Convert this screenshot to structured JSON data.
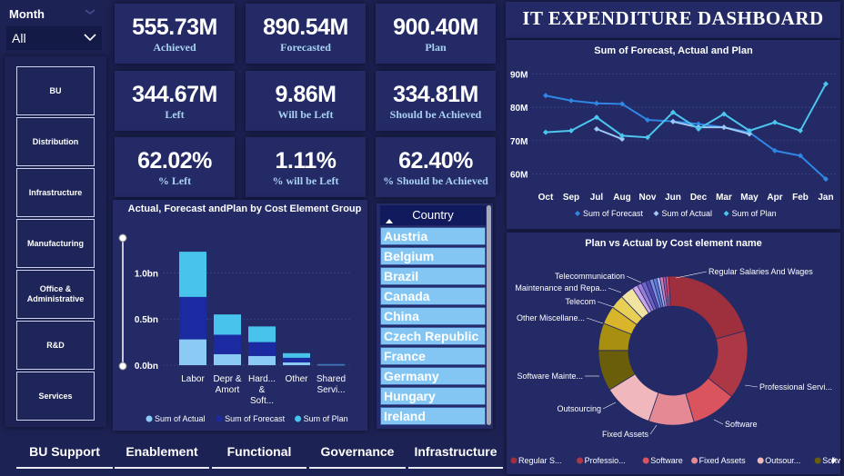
{
  "month_slicer": {
    "title": "Month",
    "selected": "All"
  },
  "bu_slicer": {
    "items": [
      "BU",
      "Distribution",
      "Infrastructure",
      "Manufacturing",
      "Office & Administrative",
      "R&D",
      "Services"
    ]
  },
  "kpis": [
    {
      "value": "555.73M",
      "label": "Achieved"
    },
    {
      "value": "890.54M",
      "label": "Forecasted"
    },
    {
      "value": "900.40M",
      "label": "Plan"
    },
    {
      "value": "344.67M",
      "label": "Left"
    },
    {
      "value": "9.86M",
      "label": "Will be Left"
    },
    {
      "value": "334.81M",
      "label": "Should be Achieved"
    },
    {
      "value": "62.02%",
      "label": "% Left"
    },
    {
      "value": "1.11%",
      "label": "% will be Left"
    },
    {
      "value": "62.40%",
      "label": "% Should be Achieved"
    }
  ],
  "dashboard_title": "IT EXPENDITURE DASHBOARD",
  "country_slicer": {
    "header": "Country",
    "items": [
      "Austria",
      "Belgium",
      "Brazil",
      "Canada",
      "China",
      "Czech Republic",
      "France",
      "Germany",
      "Hungary",
      "Ireland"
    ]
  },
  "tabs": [
    "BU Support",
    "Enablement",
    "Functional",
    "Governance",
    "Infrastructure"
  ],
  "colors": {
    "background": "#1c2253",
    "panel": "#232a66",
    "forecast": "#2f87e6",
    "actual": "#9ec9f5",
    "plan": "#4cc6ee",
    "bar_actual": "#8ccaf6",
    "bar_forecast": "#1b2aa0",
    "bar_plan": "#47c3ec"
  },
  "chart_data": [
    {
      "type": "line",
      "title": "Sum of Forecast, Actual and Plan",
      "x": [
        "Oct",
        "Sep",
        "Jul",
        "Aug",
        "Nov",
        "Jun",
        "Dec",
        "Mar",
        "May",
        "Apr",
        "Feb",
        "Jan"
      ],
      "yticks": [
        "90M",
        "80M",
        "70M",
        "60M"
      ],
      "ylim": [
        55,
        92
      ],
      "series": [
        {
          "name": "Sum of Forecast",
          "values": [
            83.5,
            82,
            81.2,
            81,
            76.2,
            75.8,
            75,
            74,
            72.5,
            67,
            65.5,
            58.5
          ]
        },
        {
          "name": "Sum of Actual",
          "values": [
            null,
            null,
            73.5,
            70.5,
            null,
            75.7,
            74,
            74,
            72,
            null,
            null,
            null
          ]
        },
        {
          "name": "Sum of Plan",
          "values": [
            72.5,
            73,
            77,
            71.5,
            71,
            78.5,
            73.5,
            78,
            73,
            75.5,
            73,
            87
          ]
        }
      ],
      "legend_position": "bottom"
    },
    {
      "type": "bar",
      "title": "Actual, Forecast andPlan by Cost Element Group",
      "categories": [
        "Labor",
        "Depr & Amort",
        "Hard... & Soft...",
        "Other",
        "Shared Servi..."
      ],
      "yticks": [
        "1.0bn",
        "0.5bn",
        "0.0bn"
      ],
      "ylim": [
        0,
        1.3
      ],
      "series": [
        {
          "name": "Sum of Actual",
          "values": [
            0.28,
            0.12,
            0.1,
            0.03,
            0.003
          ]
        },
        {
          "name": "Sum of Forecast",
          "values": [
            0.46,
            0.21,
            0.15,
            0.05,
            0.004
          ]
        },
        {
          "name": "Sum of Plan",
          "values": [
            0.49,
            0.22,
            0.17,
            0.05,
            0.004
          ]
        }
      ],
      "stacked": true,
      "legend_position": "bottom"
    },
    {
      "type": "pie",
      "title": "Plan vs Actual by Cost element name",
      "labels": [
        "Regular Salaries And Wages",
        "Professional Servi...",
        "Software",
        "Fixed Assets",
        "Outsourcing",
        "Software Mainte...",
        "Other Miscellane...",
        "Telecom",
        "Maintenance and Repa...",
        "Telecommunication"
      ],
      "values": [
        22,
        15,
        10,
        10,
        11,
        9,
        6,
        4,
        3,
        3
      ],
      "slice_colors": [
        "#9e2f3c",
        "#ac3846",
        "#d9545d",
        "#e58a95",
        "#f0b8bd",
        "#6b5e0a",
        "#a88f10",
        "#d8b52a",
        "#e8cf55",
        "#f1e3a0"
      ],
      "legend": [
        "Regular S...",
        "Professio...",
        "Software",
        "Fixed Assets",
        "Outsour...",
        "Softwar..."
      ],
      "legend_position": "bottom"
    }
  ]
}
